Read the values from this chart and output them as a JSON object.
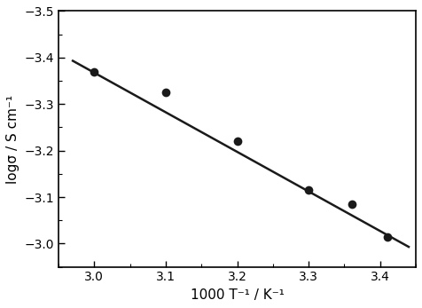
{
  "x_data": [
    3.0,
    3.1,
    3.2,
    3.3,
    3.36,
    3.41
  ],
  "y_data": [
    -3.37,
    -3.325,
    -3.22,
    -3.115,
    -3.085,
    -3.015
  ],
  "line_x": [
    2.97,
    3.44
  ],
  "line_y": [
    -3.393,
    -2.993
  ],
  "xlabel": "1000 T⁻¹ / K⁻¹",
  "ylabel": "logσ / S cm⁻¹",
  "xlim": [
    2.95,
    3.45
  ],
  "ylim_bottom": -3.5,
  "ylim_top": -2.95,
  "xticks": [
    3.0,
    3.1,
    3.2,
    3.3,
    3.4
  ],
  "yticks": [
    -3.5,
    -3.4,
    -3.3,
    -3.2,
    -3.1,
    -3.0
  ],
  "marker_color": "#1a1a1a",
  "line_color": "#1a1a1a",
  "marker_size": 7,
  "line_width": 1.8,
  "bg_color": "#ffffff"
}
